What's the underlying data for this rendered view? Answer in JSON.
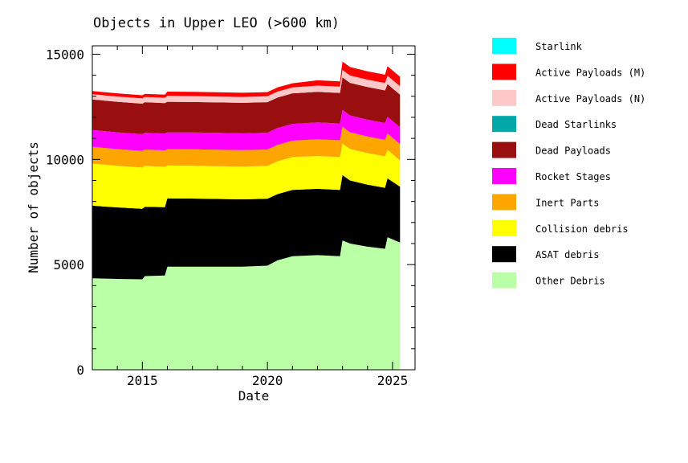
{
  "chart_data": {
    "type": "area",
    "stacked": true,
    "title": "Objects in Upper LEO (>600 km)",
    "xlabel": "Date",
    "ylabel": "Number of objects",
    "xlim": [
      2013.0,
      2025.9
    ],
    "ylim": [
      0,
      15400
    ],
    "x_ticks": [
      2015,
      2020,
      2025
    ],
    "y_ticks": [
      0,
      5000,
      10000,
      15000
    ],
    "x_tick_labels": [
      "2015",
      "2020",
      "2025"
    ],
    "y_tick_labels": [
      "0",
      "5000",
      "10000",
      "15000"
    ],
    "grid": false,
    "legend_position": "right",
    "x": [
      2013.0,
      2014.0,
      2015.0,
      2015.1,
      2015.9,
      2016.0,
      2017.0,
      2018.0,
      2019.0,
      2020.0,
      2020.4,
      2021.0,
      2022.0,
      2022.9,
      2023.0,
      2023.3,
      2024.0,
      2024.7,
      2024.8,
      2025.3
    ],
    "series": [
      {
        "name": "Other Debris",
        "color": "#bbffa6",
        "values": [
          4350,
          4320,
          4300,
          4450,
          4480,
          4900,
          4900,
          4900,
          4900,
          4950,
          5200,
          5400,
          5450,
          5400,
          6150,
          6000,
          5850,
          5750,
          6300,
          6050
        ]
      },
      {
        "name": "ASAT debris",
        "color": "#000000",
        "values": [
          3450,
          3400,
          3350,
          3300,
          3250,
          3250,
          3240,
          3220,
          3200,
          3180,
          3150,
          3150,
          3150,
          3150,
          3100,
          3000,
          2950,
          2900,
          2800,
          2650
        ]
      },
      {
        "name": "Collision debris",
        "color": "#ffff00",
        "values": [
          2000,
          1980,
          1960,
          1940,
          1920,
          1560,
          1560,
          1560,
          1560,
          1560,
          1560,
          1560,
          1560,
          1560,
          1500,
          1500,
          1500,
          1500,
          1350,
          1250
        ]
      },
      {
        "name": "Inert Parts",
        "color": "#ffa500",
        "values": [
          800,
          790,
          790,
          780,
          780,
          780,
          780,
          780,
          780,
          780,
          780,
          780,
          800,
          800,
          800,
          790,
          790,
          780,
          780,
          780
        ]
      },
      {
        "name": "Rocket Stages",
        "color": "#ff00ff",
        "values": [
          800,
          800,
          800,
          800,
          800,
          800,
          800,
          800,
          800,
          800,
          800,
          800,
          800,
          800,
          800,
          800,
          800,
          800,
          800,
          800
        ]
      },
      {
        "name": "Dead Payloads",
        "color": "#990f0f",
        "values": [
          1450,
          1450,
          1450,
          1450,
          1450,
          1450,
          1450,
          1450,
          1450,
          1450,
          1450,
          1450,
          1450,
          1450,
          1550,
          1550,
          1550,
          1550,
          1550,
          1550
        ]
      },
      {
        "name": "Dead Starlinks",
        "color": "#00a8a8",
        "values": [
          0,
          0,
          0,
          0,
          0,
          0,
          0,
          0,
          0,
          0,
          0,
          0,
          0,
          0,
          0,
          0,
          0,
          0,
          0,
          0
        ]
      },
      {
        "name": "Active Payloads (N)",
        "color": "#ffc8c8",
        "values": [
          250,
          250,
          250,
          250,
          250,
          280,
          280,
          280,
          280,
          280,
          280,
          280,
          300,
          300,
          350,
          350,
          350,
          350,
          400,
          400
        ]
      },
      {
        "name": "Active Payloads (M)",
        "color": "#ff0000",
        "values": [
          150,
          150,
          150,
          150,
          150,
          200,
          200,
          200,
          200,
          200,
          200,
          200,
          250,
          250,
          400,
          400,
          400,
          400,
          450,
          450
        ]
      },
      {
        "name": "Starlink",
        "color": "#00ffff",
        "values": [
          0,
          0,
          0,
          0,
          0,
          0,
          0,
          0,
          0,
          0,
          0,
          0,
          0,
          0,
          0,
          0,
          0,
          0,
          0,
          0
        ]
      }
    ],
    "legend_order": [
      "Starlink",
      "Active Payloads (M)",
      "Active Payloads (N)",
      "Dead Starlinks",
      "Dead Payloads",
      "Rocket Stages",
      "Inert Parts",
      "Collision debris",
      "ASAT debris",
      "Other Debris"
    ]
  }
}
